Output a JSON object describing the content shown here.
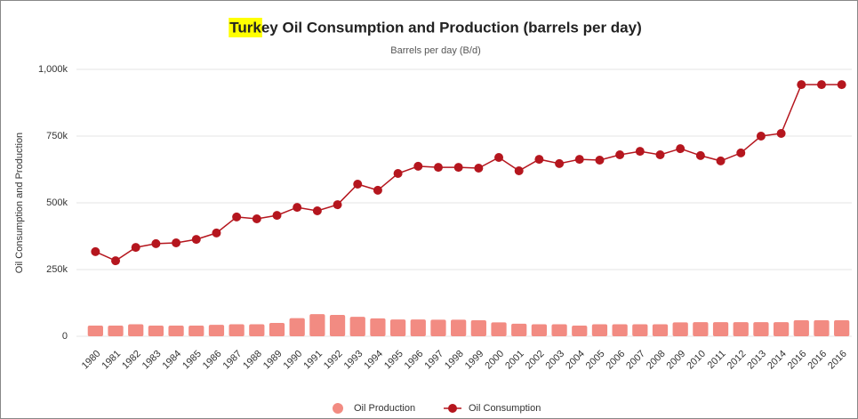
{
  "chart_data": {
    "type": "bar_line",
    "title": "Turkey Oil Consumption and Production (barrels per day)",
    "subtitle": "Barrels per day (B/d)",
    "y_label": "Oil Consumption and Production",
    "categories": [
      "1980",
      "1981",
      "1982",
      "1983",
      "1984",
      "1985",
      "1986",
      "1987",
      "1988",
      "1989",
      "1990",
      "1991",
      "1992",
      "1993",
      "1994",
      "1995",
      "1996",
      "1997",
      "1998",
      "1999",
      "2000",
      "2001",
      "2002",
      "2003",
      "2004",
      "2005",
      "2006",
      "2007",
      "2008",
      "2009",
      "2010",
      "2011",
      "2012",
      "2013",
      "2014",
      "2016",
      "2016",
      "2016"
    ],
    "series": [
      {
        "name": "Oil Production",
        "type": "bar",
        "color": "#f28b82",
        "values": [
          40000,
          40000,
          45000,
          40000,
          40000,
          40000,
          43000,
          45000,
          45000,
          50000,
          68000,
          83000,
          80000,
          73000,
          67000,
          63000,
          63000,
          62000,
          62000,
          60000,
          52000,
          47000,
          45000,
          45000,
          40000,
          45000,
          45000,
          45000,
          45000,
          52000,
          53000,
          53000,
          53000,
          53000,
          53000,
          60000,
          60000,
          60000
        ]
      },
      {
        "name": "Oil Consumption",
        "type": "line",
        "color": "#b5161e",
        "values": [
          317000,
          283000,
          333000,
          347000,
          350000,
          363000,
          387000,
          447000,
          440000,
          453000,
          483000,
          470000,
          493000,
          570000,
          547000,
          610000,
          637000,
          633000,
          633000,
          630000,
          670000,
          620000,
          663000,
          647000,
          663000,
          660000,
          680000,
          693000,
          680000,
          703000,
          677000,
          657000,
          687000,
          750000,
          760000,
          943000,
          943000,
          943000
        ]
      }
    ],
    "ylim": [
      0,
      1000000
    ],
    "yticks": [
      0,
      {
        "value": 250000,
        "label": "250k"
      },
      {
        "value": 500000,
        "label": "500k"
      },
      {
        "value": 750000,
        "label": "750k"
      },
      {
        "value": 1000000,
        "label": "1,000k"
      }
    ],
    "grid": true,
    "legend": "bottom"
  }
}
